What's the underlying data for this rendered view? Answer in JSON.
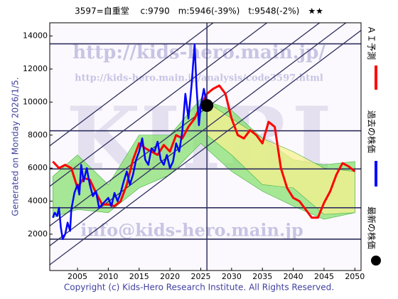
{
  "chart_data": {
    "type": "line",
    "title": "3597=自重堂　 c:9790　m:5946(-39%)　t:9548(-2%)　★★",
    "side_label": "Generated on Monday 2026/1/5.",
    "footer": "Copyright (c) Kids-Hero Research Institute. All Rights Reserved.",
    "watermarks": [
      "http://kids-hero.main.jp/",
      "http://kids-hero.main.jp/analysis/code3597.html",
      "info@kids-hero.main.jp",
      "KHRI"
    ],
    "xlim": [
      2000.5,
      2051
    ],
    "ylim": [
      -200,
      14800
    ],
    "xticks": [
      2005,
      2010,
      2015,
      2020,
      2025,
      2030,
      2035,
      2040,
      2045,
      2050
    ],
    "yticks": [
      2000,
      4000,
      6000,
      8000,
      10000,
      12000,
      14000
    ],
    "bands": [
      {
        "color": "#88e070",
        "x": [
          2001,
          2005,
          2010,
          2015,
          2020,
          2025,
          2030,
          2035,
          2040,
          2045,
          2050
        ],
        "upper": [
          5500,
          6800,
          5000,
          8000,
          8000,
          10200,
          9500,
          7800,
          6500,
          6200,
          6400
        ],
        "lower": [
          3000,
          3500,
          3300,
          4800,
          5600,
          7500,
          5800,
          4600,
          3700,
          2900,
          3300
        ]
      },
      {
        "color": "#f8f090",
        "x": [
          2026,
          2030,
          2035,
          2040,
          2045,
          2050
        ],
        "upper": [
          10000,
          9000,
          7800,
          7000,
          6000,
          5800
        ],
        "lower": [
          8000,
          6800,
          5000,
          4800,
          3200,
          3300
        ]
      }
    ],
    "trend_lines": {
      "color": "#303060",
      "x": [
        2000.5,
        2051
      ],
      "lines": [
        [
          7350,
          21540
        ],
        [
          4900,
          19090
        ],
        [
          2500,
          16690
        ],
        [
          1300,
          15490
        ],
        [
          150,
          14340
        ]
      ]
    },
    "hlines": {
      "color": "#303060",
      "values": [
        13525,
        8260,
        5950,
        3600,
        1700
      ]
    },
    "series": [
      {
        "name": "過去の株価",
        "color": "#0000ff",
        "x": [
          2001,
          2001.3,
          2001.7,
          2002,
          2002.3,
          2002.6,
          2003,
          2003.4,
          2003.8,
          2004,
          2004.5,
          2005,
          2005.3,
          2005.6,
          2006,
          2006.5,
          2007,
          2007.5,
          2008,
          2008.5,
          2009,
          2010,
          2010.5,
          2011,
          2011.5,
          2012,
          2012.5,
          2013,
          2013.5,
          2014,
          2014.5,
          2015,
          2015.5,
          2016,
          2016.5,
          2017,
          2017.5,
          2018,
          2018.5,
          2019,
          2019.5,
          2020,
          2020.5,
          2021,
          2021.5,
          2022,
          2022.5,
          2023,
          2023.5,
          2024,
          2024.3,
          2024.7,
          2025,
          2025.5,
          2026
        ],
        "values": [
          3000,
          3300,
          3100,
          3600,
          2400,
          1700,
          2000,
          2700,
          2200,
          3500,
          4500,
          5000,
          4400,
          6200,
          5200,
          6000,
          5000,
          4300,
          4600,
          3600,
          3800,
          4200,
          3700,
          4500,
          4000,
          4500,
          5200,
          5800,
          5000,
          5600,
          6500,
          7000,
          7800,
          6500,
          6200,
          7200,
          7000,
          7600,
          6500,
          6200,
          6800,
          6000,
          6400,
          7500,
          7000,
          8200,
          10500,
          9000,
          11000,
          13500,
          11000,
          8600,
          9800,
          10800,
          9790
        ]
      },
      {
        "name": "ＡＩ予測",
        "color": "#ff0000",
        "x": [
          2001,
          2002,
          2003,
          2004,
          2005,
          2006,
          2007,
          2008,
          2009,
          2010,
          2011,
          2012,
          2013,
          2014,
          2015,
          2016,
          2017,
          2018,
          2019,
          2020,
          2021,
          2022,
          2023,
          2024,
          2025,
          2026,
          2027,
          2028,
          2029,
          2030,
          2031,
          2032,
          2033,
          2034,
          2035,
          2036,
          2037,
          2038,
          2039,
          2040,
          2041,
          2042,
          2043,
          2044,
          2045,
          2046,
          2047,
          2048,
          2049,
          2050
        ],
        "values": [
          6400,
          6000,
          6200,
          6000,
          4800,
          5400,
          5300,
          4500,
          3800,
          3800,
          3700,
          4000,
          5000,
          6500,
          7500,
          7200,
          7000,
          6800,
          7400,
          7000,
          8000,
          7800,
          8500,
          9000,
          9800,
          10500,
          10800,
          11000,
          10500,
          9000,
          8000,
          7800,
          8300,
          8000,
          7500,
          8800,
          8500,
          6000,
          4800,
          4200,
          4000,
          3500,
          3000,
          3000,
          3900,
          4600,
          5600,
          6300,
          6100,
          5800
        ]
      }
    ],
    "latest": {
      "name": "最新の株価",
      "color": "#000000",
      "x": 2026,
      "value": 9790
    }
  }
}
